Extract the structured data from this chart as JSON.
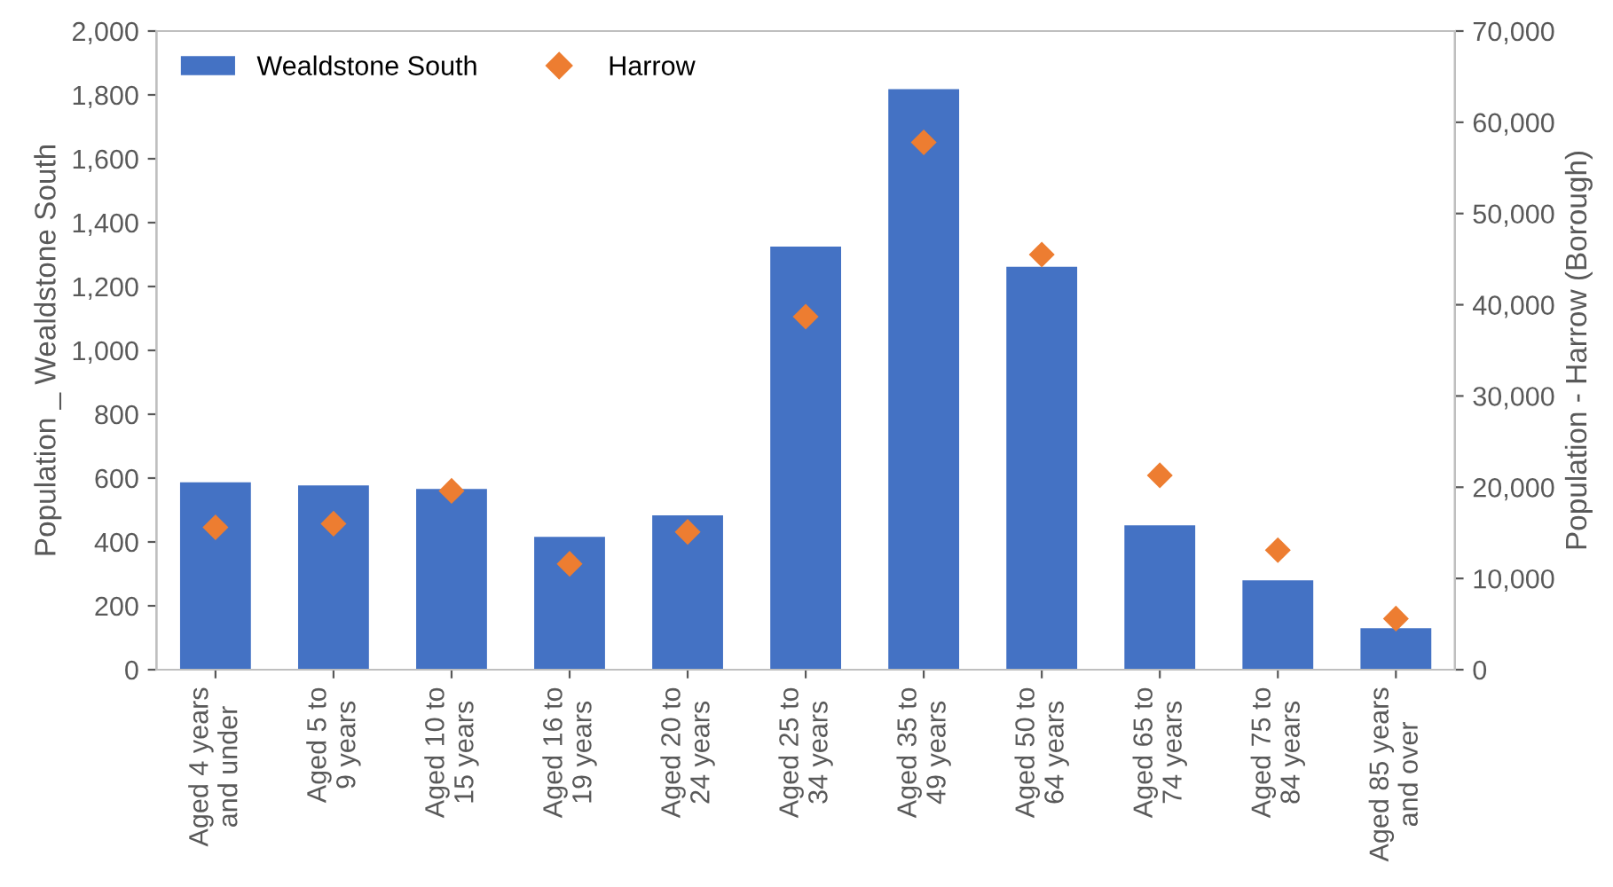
{
  "chart_data": {
    "type": "bar",
    "categories": [
      "Aged 4 years and under",
      "Aged 5 to 9 years",
      "Aged 10 to 15 years",
      "Aged 16 to 19 years",
      "Aged 20 to 24 years",
      "Aged 25 to 34 years",
      "Aged 35 to 49 years",
      "Aged 50 to 64 years",
      "Aged 65 to 74 years",
      "Aged 75 to 84 years",
      "Aged 85 years and over"
    ],
    "series": [
      {
        "name": "Wealdstone South",
        "color": "#4472c4",
        "values": [
          587,
          577,
          566,
          416,
          483,
          1325,
          1818,
          1262,
          452,
          280,
          130
        ]
      },
      {
        "name": "Harrow",
        "type": "scatter",
        "axis": "y2",
        "marker": "diamond",
        "color": "#ed7d31",
        "values": [
          15600,
          16000,
          19600,
          11600,
          15100,
          38700,
          57800,
          45500,
          21300,
          13100,
          5600
        ]
      }
    ],
    "ylabel": "Population _ Wealdstone South",
    "y2label": "Population - Harrow (Borough)",
    "ylim": [
      0,
      2000
    ],
    "yticks": [
      0,
      200,
      400,
      600,
      800,
      {
        "value": 1000,
        "label": "1,000"
      },
      {
        "value": 1200,
        "label": "1,200"
      },
      {
        "value": 1400,
        "label": "1,400"
      },
      {
        "value": 1600,
        "label": "1,600"
      },
      {
        "value": 1800,
        "label": "1,800"
      },
      {
        "value": 2000,
        "label": "2,000"
      }
    ],
    "y2lim": [
      0,
      70000
    ],
    "y2ticks": [
      0,
      {
        "value": 10000,
        "label": "10,000"
      },
      {
        "value": 20000,
        "label": "20,000"
      },
      {
        "value": 30000,
        "label": "30,000"
      },
      {
        "value": 40000,
        "label": "40,000"
      },
      {
        "value": 50000,
        "label": "50,000"
      },
      {
        "value": 60000,
        "label": "60,000"
      },
      {
        "value": 70000,
        "label": "70,000"
      }
    ],
    "legend": "top left",
    "grid": false
  }
}
